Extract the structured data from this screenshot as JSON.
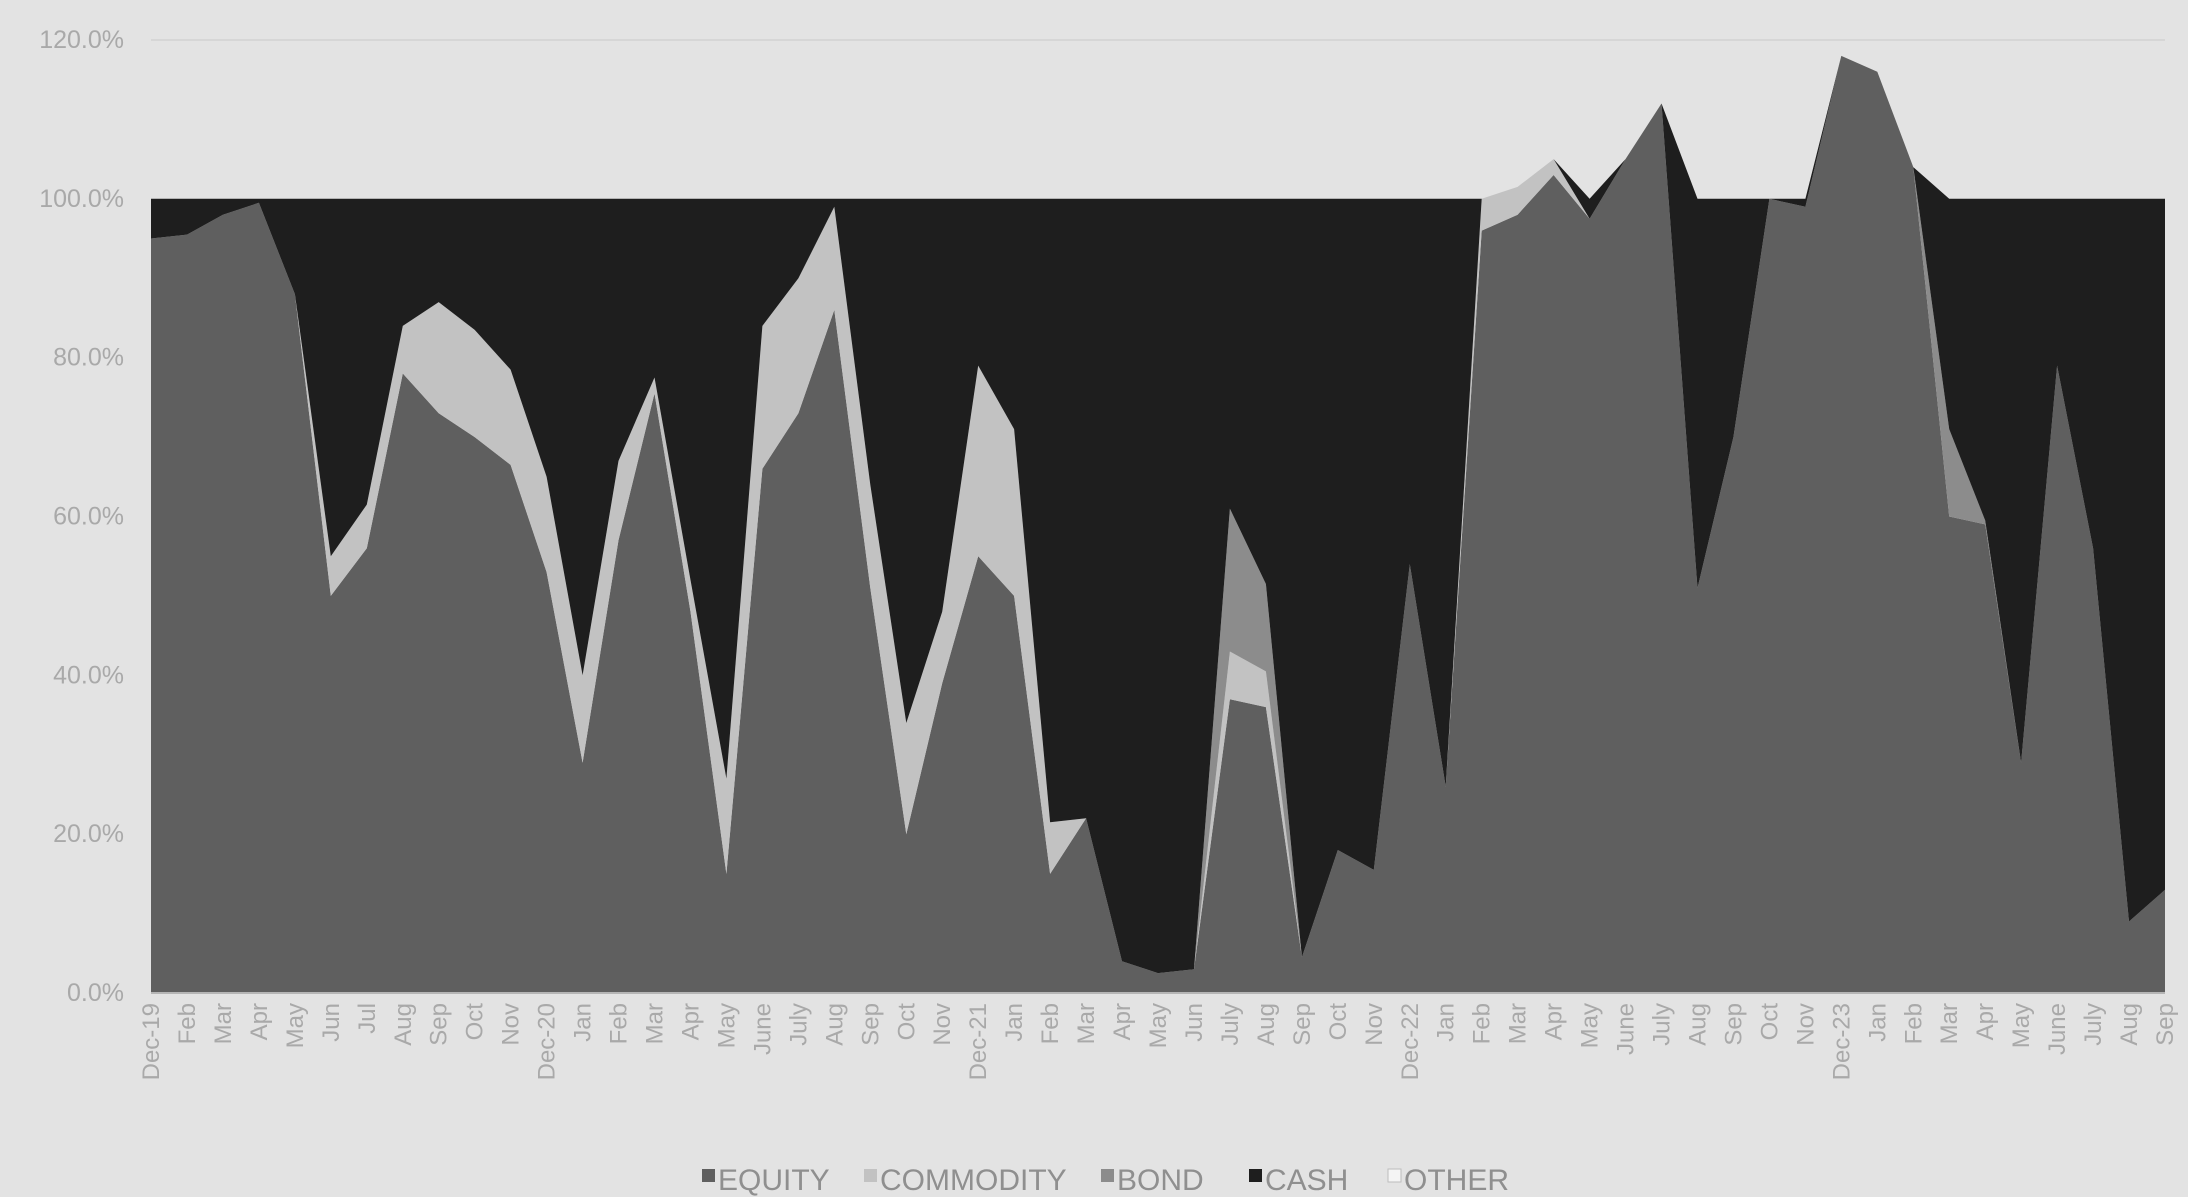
{
  "chart_data": {
    "type": "area",
    "stacked": true,
    "title": "",
    "xlabel": "",
    "ylabel": "",
    "ylim": [
      0,
      1.2
    ],
    "yticks": [
      "0.0%",
      "20.0%",
      "40.0%",
      "60.0%",
      "80.0%",
      "100.0%",
      "120.0%"
    ],
    "legend_position": "bottom",
    "grid": false,
    "categories": [
      "Dec-19",
      "Feb",
      "Mar",
      "Apr",
      "May",
      "Jun",
      "Jul",
      "Aug",
      "Sep",
      "Oct",
      "Nov",
      "Dec-20",
      "Jan",
      "Feb",
      "Mar",
      "Apr",
      "May",
      "June",
      "July",
      "Aug",
      "Sep",
      "Oct",
      "Nov",
      "Dec-21",
      "Jan",
      "Feb",
      "Mar",
      "Apr",
      "May",
      "Jun",
      "July",
      "Aug",
      "Sep",
      "Oct",
      "Nov",
      "Dec-22",
      "Jan",
      "Feb",
      "Mar",
      "Apr",
      "May",
      "June",
      "July",
      "Aug",
      "Sep",
      "Oct",
      "Nov",
      "Dec-23",
      "Jan",
      "Feb",
      "Mar",
      "Apr",
      "May",
      "June",
      "July",
      "Aug",
      "Sep"
    ],
    "series": [
      {
        "name": "EQUITY",
        "color": "#5f5f5f",
        "values": [
          0.95,
          0.955,
          0.98,
          0.995,
          0.88,
          0.5,
          0.56,
          0.78,
          0.73,
          0.7,
          0.665,
          0.53,
          0.29,
          0.57,
          0.755,
          0.48,
          0.15,
          0.66,
          0.73,
          0.86,
          0.51,
          0.2,
          0.39,
          0.55,
          0.5,
          0.15,
          0.22,
          0.04,
          0.025,
          0.03,
          0.37,
          0.36,
          0.045,
          0.18,
          0.155,
          0.54,
          0.26,
          0.96,
          0.98,
          1.03,
          0.975,
          1.05,
          1.12,
          0.51,
          0.7,
          1.0,
          0.99,
          1.18,
          1.16,
          1.04,
          0.6,
          0.59,
          0.29,
          0.79,
          0.56,
          0.09,
          0.13
        ]
      },
      {
        "name": "COMMODITY",
        "color": "#c2c2c2",
        "values": [
          0,
          0,
          0,
          0,
          0,
          0.05,
          0.055,
          0.06,
          0.14,
          0.135,
          0.12,
          0.12,
          0.11,
          0.1,
          0.02,
          0.04,
          0.12,
          0.18,
          0.17,
          0.13,
          0.13,
          0.14,
          0.09,
          0.24,
          0.21,
          0.065,
          0,
          0,
          0,
          0,
          0.06,
          0.045,
          0,
          0,
          0,
          0,
          0,
          0.04,
          0.035,
          0.02,
          0,
          0,
          0,
          0,
          0,
          0,
          0,
          0,
          0,
          0,
          0,
          0,
          0,
          0,
          0,
          0,
          0
        ]
      },
      {
        "name": "BOND",
        "color": "#8c8c8c",
        "values": [
          0,
          0,
          0,
          0,
          0,
          0,
          0,
          0,
          0,
          0,
          0,
          0,
          0,
          0,
          0,
          0,
          0,
          0,
          0,
          0,
          0,
          0,
          0,
          0,
          0,
          0,
          0,
          0,
          0,
          0,
          0.18,
          0.11,
          0,
          0,
          0,
          0,
          0,
          0,
          0,
          0,
          0,
          0,
          0,
          0,
          0,
          0,
          0,
          0,
          0,
          0,
          0.11,
          0.005,
          0,
          0,
          0,
          0,
          0
        ]
      },
      {
        "name": "CASH",
        "color": "#1e1e1e",
        "values": [
          0.05,
          0.045,
          0.02,
          0.005,
          0.12,
          0.45,
          0.385,
          0.16,
          0.13,
          0.165,
          0.215,
          0.35,
          0.6,
          0.33,
          0.225,
          0.48,
          0.73,
          0.16,
          0.1,
          0.01,
          0.36,
          0.66,
          0.52,
          0.21,
          0.29,
          0.785,
          0.78,
          0.96,
          0.975,
          0.97,
          0.39,
          0.485,
          0.955,
          0.82,
          0.845,
          0.46,
          0.74,
          0,
          0,
          0,
          0.025,
          0,
          0,
          0.49,
          0.3,
          0,
          0.01,
          0,
          0,
          0,
          0.29,
          0.405,
          0.71,
          0.21,
          0.44,
          0.91,
          0.87
        ]
      },
      {
        "name": "OTHER",
        "color": "#f4f4f4",
        "values": [
          0,
          0,
          0,
          0,
          0,
          0,
          0,
          0,
          0,
          0,
          0,
          0,
          0,
          0,
          0,
          0,
          0,
          0,
          0,
          0,
          0,
          0,
          0,
          0,
          0,
          0,
          0,
          0,
          0,
          0,
          0,
          0,
          0,
          0,
          0,
          0,
          0,
          0,
          0,
          0,
          0,
          0,
          0,
          0,
          0,
          0,
          0,
          0,
          0,
          0,
          0,
          0,
          0,
          0,
          0,
          0,
          0
        ]
      }
    ]
  }
}
